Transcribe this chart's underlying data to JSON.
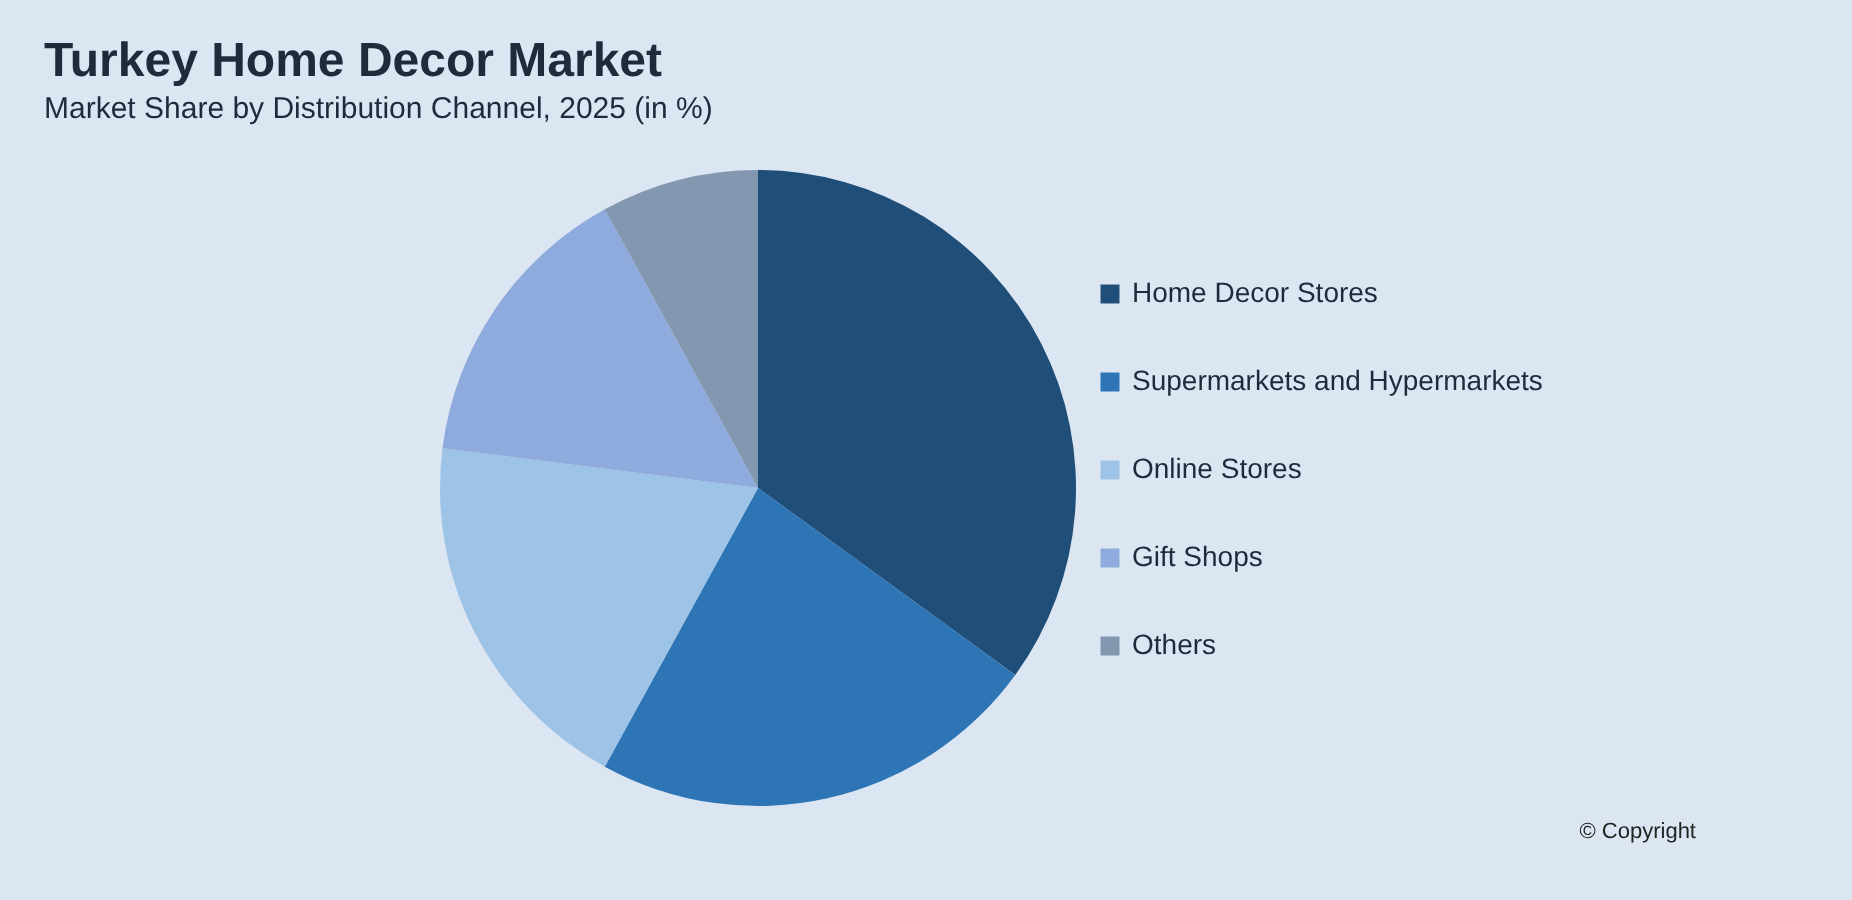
{
  "chart_data": {
    "type": "pie",
    "title": "Turkey Home Decor Market",
    "subtitle": "Market Share by Distribution Channel, 2025 (in %)",
    "categories": [
      "Home Decor Stores",
      "Supermarkets and Hypermarkets",
      "Online Stores",
      "Gift Shops",
      "Others"
    ],
    "values": [
      35,
      23,
      19,
      15,
      8
    ],
    "colors": [
      "#1f4e79",
      "#2e75b6",
      "#9dc3e6",
      "#8faadc",
      "#8497b0"
    ],
    "legend": "right",
    "annotations": [
      "© Copyright"
    ]
  }
}
